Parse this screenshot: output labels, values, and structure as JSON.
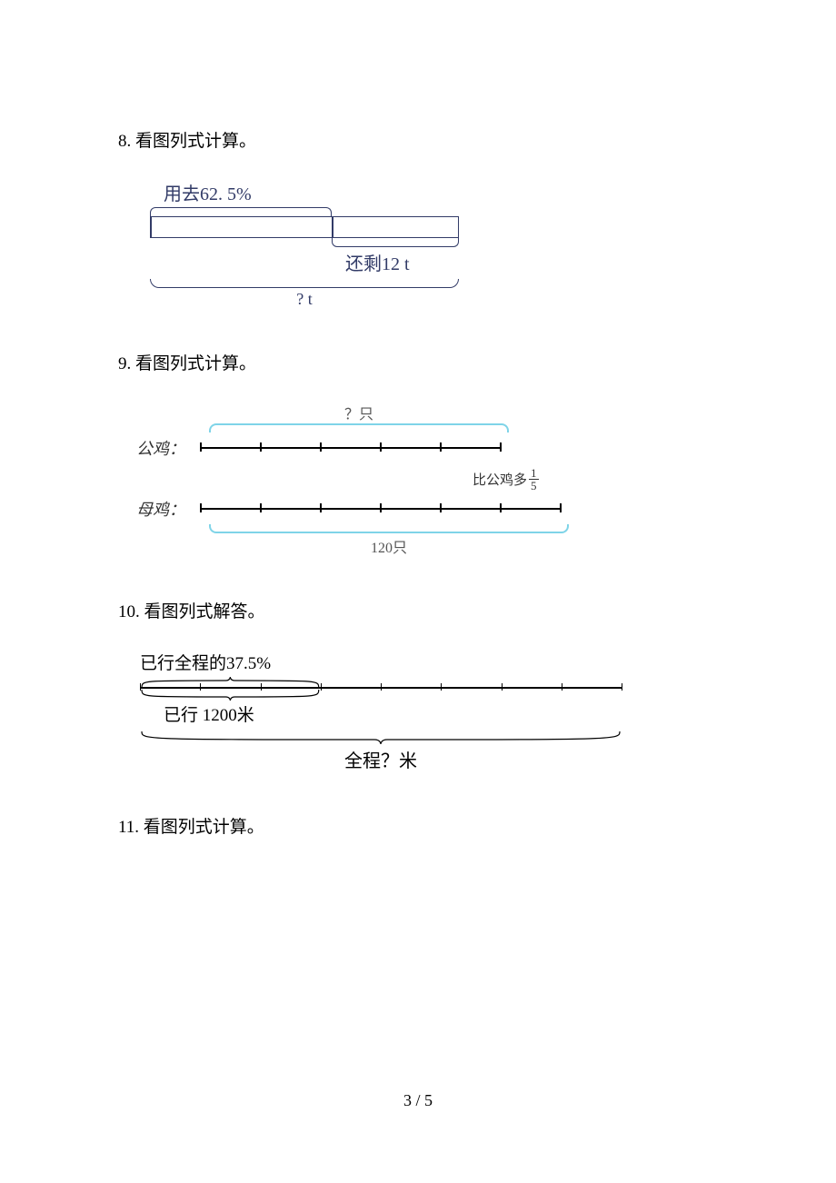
{
  "page_number": "3 / 5",
  "q8": {
    "title": "8.  看图列式计算。",
    "top_label": "用去62. 5%",
    "right_label": "还剩12 t",
    "bottom_label": "? t",
    "bar_split_percent": 58.8,
    "colors": {
      "line": "#323b67"
    }
  },
  "q9": {
    "title": "9.  看图列式计算。",
    "top_label": "？只",
    "row1_label": "公鸡：",
    "row2_label": "母鸡：",
    "extra_label_prefix": "比公鸡多",
    "extra_frac_num": "1",
    "extra_frac_den": "5",
    "bottom_label": "120只",
    "rooster_segments": 5,
    "hen_segments": 6,
    "colors": {
      "brace": "#7fd4e8",
      "line": "#000000"
    }
  },
  "q10": {
    "title": "10.  看图列式解答。",
    "top_label": "已行全程的37.5%",
    "mid_label": "已行 1200米",
    "full_label": "全程？米",
    "total_ticks": 8,
    "traveled_ticks": 3,
    "colors": {
      "line": "#000000"
    }
  },
  "q11": {
    "title": "11.  看图列式计算。"
  }
}
